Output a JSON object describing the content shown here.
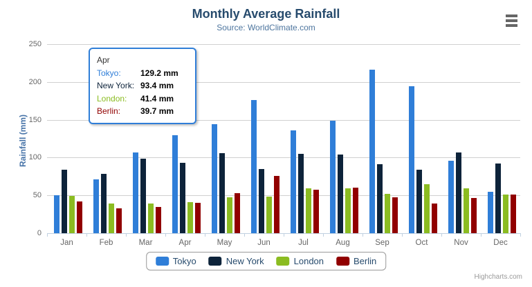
{
  "header": {
    "title": "Monthly Average Rainfall",
    "subtitle": "Source: WorldClimate.com"
  },
  "chart_data": {
    "type": "bar",
    "title": "Monthly Average Rainfall",
    "subtitle": "Source: WorldClimate.com",
    "xlabel": "",
    "ylabel": "Rainfall (mm)",
    "ylim": [
      0,
      250
    ],
    "yticks": [
      0,
      50,
      100,
      150,
      200,
      250
    ],
    "grid": true,
    "legend_position": "bottom",
    "categories": [
      "Jan",
      "Feb",
      "Mar",
      "Apr",
      "May",
      "Jun",
      "Jul",
      "Aug",
      "Sep",
      "Oct",
      "Nov",
      "Dec"
    ],
    "series": [
      {
        "name": "Tokyo",
        "color": "#2f7ed8",
        "values": [
          49.9,
          71.5,
          106.4,
          129.2,
          144.0,
          176.0,
          135.6,
          148.5,
          216.4,
          194.1,
          95.6,
          54.4
        ]
      },
      {
        "name": "New York",
        "color": "#0d233a",
        "values": [
          83.6,
          78.8,
          98.5,
          93.4,
          106.0,
          84.5,
          105.0,
          104.3,
          91.2,
          83.5,
          106.6,
          92.3
        ]
      },
      {
        "name": "London",
        "color": "#8bbc21",
        "values": [
          48.9,
          38.8,
          39.3,
          41.4,
          47.0,
          48.3,
          59.0,
          59.6,
          52.4,
          65.2,
          59.3,
          51.2
        ]
      },
      {
        "name": "Berlin",
        "color": "#910000",
        "values": [
          42.4,
          33.2,
          34.5,
          39.7,
          52.6,
          75.5,
          57.4,
          60.4,
          47.6,
          39.1,
          46.8,
          51.1
        ]
      }
    ]
  },
  "tooltip": {
    "header": "Apr",
    "rows": [
      {
        "label": "Tokyo:",
        "value": "129.2 mm",
        "color": "#2f7ed8"
      },
      {
        "label": "New York:",
        "value": "93.4 mm",
        "color": "#0d233a"
      },
      {
        "label": "London:",
        "value": "41.4 mm",
        "color": "#8bbc21"
      },
      {
        "label": "Berlin:",
        "value": "39.7 mm",
        "color": "#910000"
      }
    ],
    "border_color": "#2f7ed8"
  },
  "credit": {
    "label": "Highcharts.com"
  },
  "colors": {
    "title": "#274b6d",
    "subtitle": "#4d759e",
    "y_axis_title": "#4572a7",
    "axis_label": "#666666",
    "axis_line": "#c0d0e0",
    "gridline": "#d0d0d0",
    "legend_text": "#274b6d",
    "credit_text": "#999999"
  }
}
